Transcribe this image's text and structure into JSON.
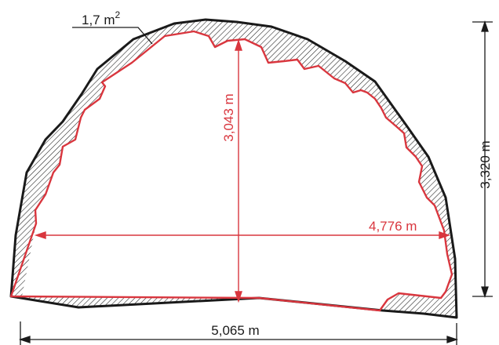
{
  "labels": {
    "overbreak_area_value": "1,7 m",
    "overbreak_area_sup": "2",
    "actual_height": "3,043 m",
    "actual_width": "4,776 m",
    "design_height": "3,320 m",
    "design_width": "5,065 m"
  },
  "colors": {
    "design_outline": "#1a1a1a",
    "actual_outline": "#d9363e",
    "hatch": "#1a1a1a",
    "dimension_black": "#1a1a1a",
    "dimension_red": "#d9363e"
  }
}
